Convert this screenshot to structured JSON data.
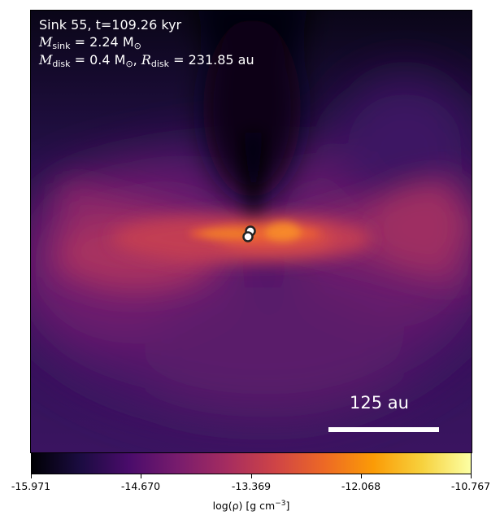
{
  "info": {
    "line1": "Sink 55, t=109.26 kyr",
    "msink_sym": "M",
    "msink_sub": "sink",
    "msink_value": " = 2.24 M",
    "msink_unit_sub": "⊙",
    "mdisk_sym": "M",
    "mdisk_sub": "disk",
    "mdisk_value": " = 0.4 M",
    "mdisk_unit_sub": "⊙",
    "rdisk_sep": ", ",
    "rdisk_sym": "R",
    "rdisk_sub": "disk",
    "rdisk_value": " = 231.85 au"
  },
  "scale_bar": {
    "label": "125 au"
  },
  "colorbar": {
    "colormap": "inferno",
    "ticks": [
      "-15.971",
      "-14.670",
      "-13.369",
      "-12.068",
      "-10.767"
    ],
    "label_prefix": "log(ρ) [g cm",
    "label_exp": "−3",
    "label_suffix": "]"
  },
  "colors": {
    "background_dark": "#1e0a3a",
    "envelope": "#5a1a6e",
    "disk_mid": "#c23c53",
    "disk_core": "#f26a24",
    "cavity": "#05030f"
  },
  "sinks": {
    "count": 2
  }
}
